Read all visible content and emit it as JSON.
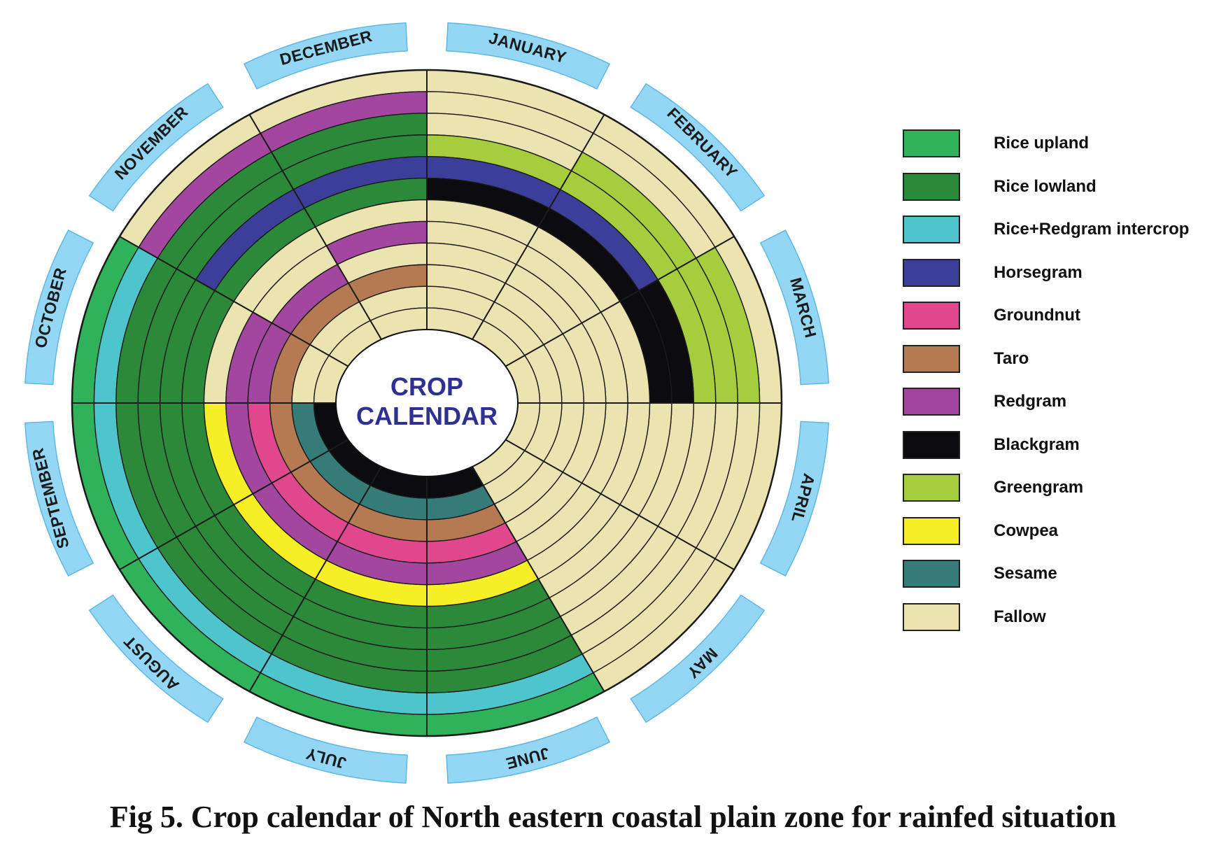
{
  "title": {
    "line1": "CROP",
    "line2": "CALENDAR"
  },
  "caption": "Fig 5.  Crop calendar of North eastern coastal plain zone for rainfed situation",
  "months": [
    "JANUARY",
    "FEBRUARY",
    "MARCH",
    "APRIL",
    "MAY",
    "JUNE",
    "JULY",
    "AUGUST",
    "SEPTEMBER",
    "OCTOBER",
    "NOVEMBER",
    "DECEMBER"
  ],
  "legend": [
    {
      "key": "upland",
      "label": "Rice upland",
      "color": "#2fb25a"
    },
    {
      "key": "lowland",
      "label": "Rice lowland",
      "color": "#2a8a3a"
    },
    {
      "key": "intercrop",
      "label": "Rice+Redgram intercrop",
      "color": "#4ec4cc"
    },
    {
      "key": "horsegram",
      "label": "Horsegram",
      "color": "#3b3f9a"
    },
    {
      "key": "groundnut",
      "label": "Groundnut",
      "color": "#e0478c"
    },
    {
      "key": "taro",
      "label": "Taro",
      "color": "#b57a52"
    },
    {
      "key": "redgram",
      "label": "Redgram",
      "color": "#a3469f"
    },
    {
      "key": "blackgram",
      "label": "Blackgram",
      "color": "#0b0b10"
    },
    {
      "key": "greengram",
      "label": "Greengram",
      "color": "#a6cd3d"
    },
    {
      "key": "cowpea",
      "label": "Cowpea",
      "color": "#f7ef25"
    },
    {
      "key": "sesame",
      "label": "Sesame",
      "color": "#357b78"
    },
    {
      "key": "fallow",
      "label": "Fallow",
      "color": "#ebe3b0"
    }
  ],
  "rings_outer_to_inner": [
    [
      "fallow",
      "fallow",
      "fallow",
      "fallow",
      "fallow",
      "upland",
      "upland",
      "upland",
      "upland",
      "upland",
      "fallow",
      "fallow"
    ],
    [
      "fallow",
      "fallow",
      "greengram",
      "fallow",
      "fallow",
      "intercrop",
      "intercrop",
      "intercrop",
      "intercrop",
      "intercrop",
      "redgram",
      "redgram"
    ],
    [
      "fallow",
      "greengram",
      "greengram",
      "fallow",
      "fallow",
      "lowland",
      "lowland",
      "lowland",
      "lowland",
      "lowland",
      "lowland",
      "lowland"
    ],
    [
      "greengram",
      "greengram",
      "greengram",
      "fallow",
      "fallow",
      "lowland",
      "lowland",
      "lowland",
      "lowland",
      "lowland",
      "lowland",
      "lowland"
    ],
    [
      "horsegram",
      "horsegram",
      "blackgram",
      "fallow",
      "fallow",
      "lowland",
      "lowland",
      "lowland",
      "lowland",
      "lowland",
      "horsegram",
      "horsegram"
    ],
    [
      "blackgram",
      "blackgram",
      "blackgram",
      "fallow",
      "fallow",
      "lowland",
      "lowland",
      "lowland",
      "lowland",
      "lowland",
      "lowland",
      "lowland"
    ],
    [
      "fallow",
      "fallow",
      "fallow",
      "fallow",
      "fallow",
      "cowpea",
      "cowpea",
      "cowpea",
      "cowpea",
      "fallow",
      "fallow",
      "fallow"
    ],
    [
      "fallow",
      "fallow",
      "fallow",
      "fallow",
      "fallow",
      "redgram",
      "redgram",
      "redgram",
      "redgram",
      "redgram",
      "fallow",
      "redgram"
    ],
    [
      "fallow",
      "fallow",
      "fallow",
      "fallow",
      "fallow",
      "groundnut",
      "groundnut",
      "groundnut",
      "groundnut",
      "redgram",
      "redgram",
      "fallow"
    ],
    [
      "fallow",
      "fallow",
      "fallow",
      "fallow",
      "fallow",
      "taro",
      "taro",
      "taro",
      "taro",
      "taro",
      "taro",
      "taro"
    ],
    [
      "fallow",
      "fallow",
      "fallow",
      "fallow",
      "fallow",
      "sesame",
      "sesame",
      "sesame",
      "sesame",
      "fallow",
      "fallow",
      "fallow"
    ],
    [
      "fallow",
      "fallow",
      "fallow",
      "fallow",
      "fallow",
      "blackgram",
      "blackgram",
      "blackgram",
      "blackgram",
      "fallow",
      "fallow",
      "fallow"
    ]
  ]
}
